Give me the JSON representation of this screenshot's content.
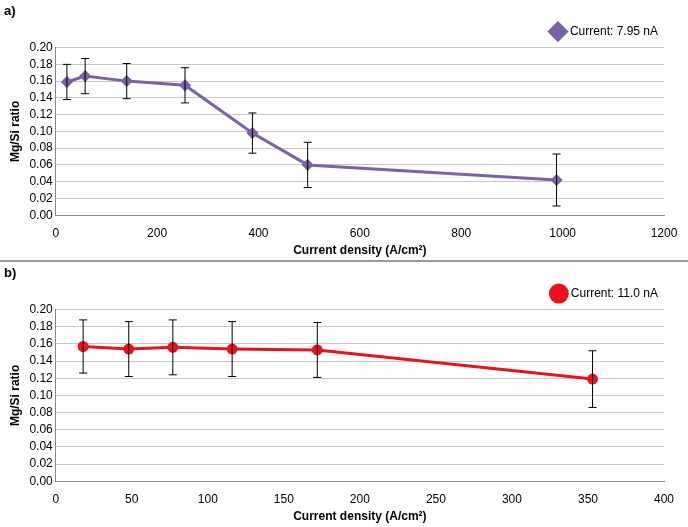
{
  "chart_data": [
    {
      "type": "line",
      "title": "a)",
      "x_label": "Current density (A/cm²)",
      "y_label": "Mg/Si ratio",
      "x": [
        22,
        58,
        140,
        255,
        388,
        497,
        988
      ],
      "series": [
        {
          "name": "Current: 7.95 nA",
          "color": "#7b62a8",
          "marker": "diamond",
          "values": [
            0.159,
            0.166,
            0.16,
            0.155,
            0.098,
            0.06,
            0.042
          ],
          "errors": [
            0.021,
            0.021,
            0.021,
            0.021,
            0.024,
            0.027,
            0.031
          ]
        }
      ],
      "xlim": [
        0,
        1200
      ],
      "xticks": [
        0,
        200,
        400,
        600,
        800,
        1000,
        1200
      ],
      "ylim": [
        0,
        0.2
      ],
      "yticks": [
        {
          "value": 0,
          "label": "0.00"
        },
        {
          "value": 0.02,
          "label": "0.02"
        },
        {
          "value": 0.04,
          "label": "0.04"
        },
        {
          "value": 0.06,
          "label": "0.06"
        },
        {
          "value": 0.08,
          "label": "0.08"
        },
        {
          "value": 0.1,
          "label": "0.10"
        },
        {
          "value": 0.12,
          "label": "0.12"
        },
        {
          "value": 0.14,
          "label": "0.14"
        },
        {
          "value": 0.16,
          "label": "0.16"
        },
        {
          "value": 0.18,
          "label": "0.18"
        },
        {
          "value": 0.2,
          "label": "0.20"
        }
      ],
      "grid": true,
      "legend": "top-right"
    },
    {
      "type": "line",
      "title": "b)",
      "x_label": "Current density (A/cm²)",
      "y_label": "Mg/Si ratio",
      "x": [
        18,
        48,
        77,
        116,
        172,
        353
      ],
      "series": [
        {
          "name": "Current: 11.0 nA",
          "color": "#e8141c",
          "marker": "circle",
          "values": [
            0.157,
            0.154,
            0.156,
            0.154,
            0.153,
            0.119
          ],
          "errors": [
            0.031,
            0.032,
            0.032,
            0.032,
            0.032,
            0.033
          ]
        }
      ],
      "xlim": [
        0,
        400
      ],
      "xticks": [
        0,
        50,
        100,
        150,
        200,
        250,
        300,
        350,
        400
      ],
      "ylim": [
        0,
        0.2
      ],
      "yticks": [
        {
          "value": 0,
          "label": "0.00"
        },
        {
          "value": 0.02,
          "label": "0.02"
        },
        {
          "value": 0.04,
          "label": "0.04"
        },
        {
          "value": 0.06,
          "label": "0.06"
        },
        {
          "value": 0.08,
          "label": "0.08"
        },
        {
          "value": 0.1,
          "label": "0.10"
        },
        {
          "value": 0.12,
          "label": "0.12"
        },
        {
          "value": 0.14,
          "label": "0.14"
        },
        {
          "value": 0.16,
          "label": "0.16"
        },
        {
          "value": 0.18,
          "label": "0.18"
        },
        {
          "value": 0.2,
          "label": "0.20"
        }
      ],
      "grid": true,
      "legend": "top-right"
    }
  ]
}
